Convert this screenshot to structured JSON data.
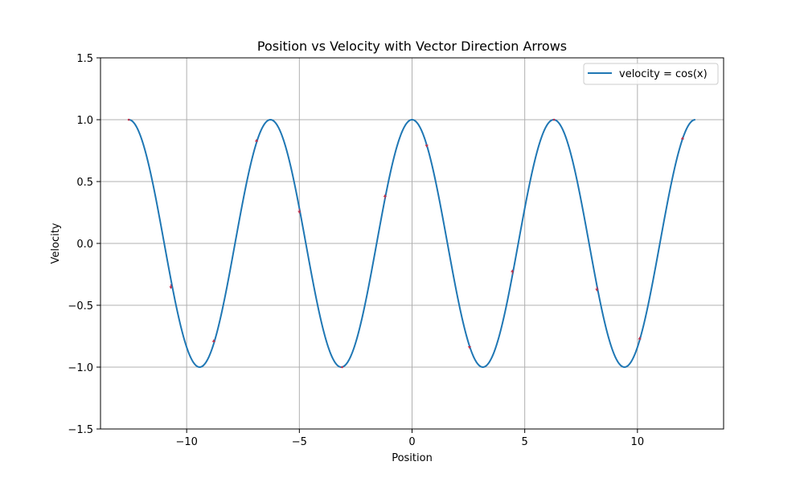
{
  "chart_data": {
    "type": "line",
    "title": "Position vs Velocity with Vector Direction Arrows",
    "xlabel": "Position",
    "ylabel": "Velocity",
    "xlim": [
      -13.823,
      13.823
    ],
    "ylim": [
      -1.5,
      1.5
    ],
    "x_ticks": [
      -10,
      -5,
      0,
      5,
      10
    ],
    "x_tick_labels": [
      "−10",
      "−5",
      "0",
      "5",
      "10"
    ],
    "y_ticks": [
      -1.5,
      -1.0,
      -0.5,
      0.0,
      0.5,
      1.0,
      1.5
    ],
    "y_tick_labels": [
      "−1.5",
      "−1.0",
      "−0.5",
      "0.0",
      "0.5",
      "1.0",
      "1.5"
    ],
    "grid": true,
    "legend_position": "top-right",
    "series": [
      {
        "name": "velocity = cos(x)",
        "function": "cos(x)",
        "x_range": [
          -12.566,
          12.566
        ],
        "color": "#1f77b4"
      }
    ],
    "arrows": {
      "color": "#c0304a",
      "points": [
        {
          "x": -12.57,
          "y": 1.0,
          "dy": 0.0
        },
        {
          "x": -10.7,
          "y": -0.33,
          "dy": -0.94
        },
        {
          "x": -8.8,
          "y": -0.8,
          "dy": 0.6
        },
        {
          "x": -6.9,
          "y": 0.82,
          "dy": 0.58
        },
        {
          "x": -5.0,
          "y": 0.28,
          "dy": -0.96
        },
        {
          "x": -3.1,
          "y": -1.0,
          "dy": 0.04
        },
        {
          "x": -1.2,
          "y": 0.36,
          "dy": 0.93
        },
        {
          "x": 0.65,
          "y": 0.8,
          "dy": -0.6
        },
        {
          "x": 2.55,
          "y": -0.83,
          "dy": -0.56
        },
        {
          "x": 4.45,
          "y": -0.25,
          "dy": 0.97
        },
        {
          "x": 6.3,
          "y": 1.0,
          "dy": -0.02
        },
        {
          "x": 8.2,
          "y": -0.35,
          "dy": -0.94
        },
        {
          "x": 10.1,
          "y": -0.78,
          "dy": 0.62
        },
        {
          "x": 12.0,
          "y": 0.84,
          "dy": 0.54
        }
      ]
    }
  }
}
